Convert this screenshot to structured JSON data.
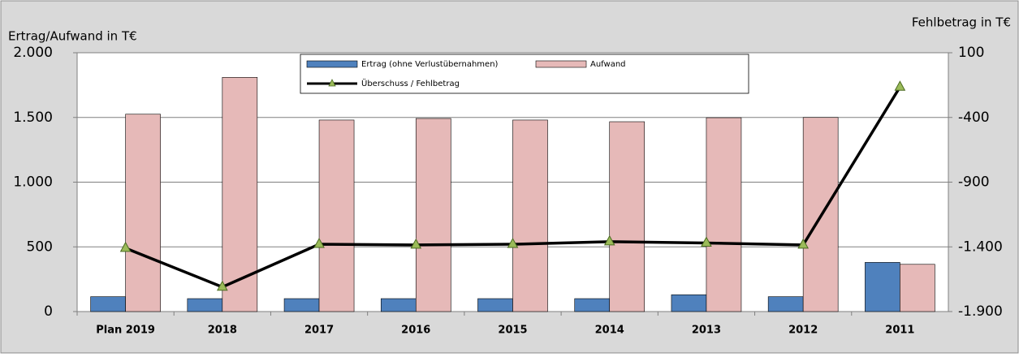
{
  "chart_data": {
    "type": "bar",
    "y_label": "Ertrag/Aufwand in T€",
    "y2_label": "Fehlbetrag in T€",
    "categories": [
      "Plan 2019",
      "2018",
      "2017",
      "2016",
      "2015",
      "2014",
      "2013",
      "2012",
      "2011"
    ],
    "series": [
      {
        "name": "Ertrag (ohne Verlustübernahmen)",
        "type": "bar",
        "color": "#4f81bd",
        "values": [
          115,
          100,
          100,
          100,
          100,
          100,
          130,
          115,
          380
        ]
      },
      {
        "name": "Aufwand",
        "type": "bar",
        "color": "#e6b9b8",
        "values": [
          1525,
          1810,
          1480,
          1492,
          1480,
          1467,
          1498,
          1500,
          365
        ]
      },
      {
        "name": "Überschuss / Fehlbetrag",
        "type": "line",
        "axis": "y2",
        "color": "#000000",
        "marker_color": "#9bbb59",
        "values": [
          -1410,
          -1710,
          -1380,
          -1385,
          -1380,
          -1360,
          -1370,
          -1385,
          -165
        ]
      }
    ],
    "ylim": [
      0,
      2000
    ],
    "yticks": [
      0,
      500,
      {
        "value": 1000,
        "label": "1.000"
      },
      {
        "value": 1500,
        "label": "1.500"
      },
      {
        "value": 2000,
        "label": "2.000"
      }
    ],
    "y2lim": [
      -1900,
      100
    ],
    "y2ticks": [
      {
        "value": -1900,
        "label": "-1.900"
      },
      {
        "value": -1400,
        "label": "-1.400"
      },
      -900,
      -400,
      100
    ],
    "grid": true
  }
}
